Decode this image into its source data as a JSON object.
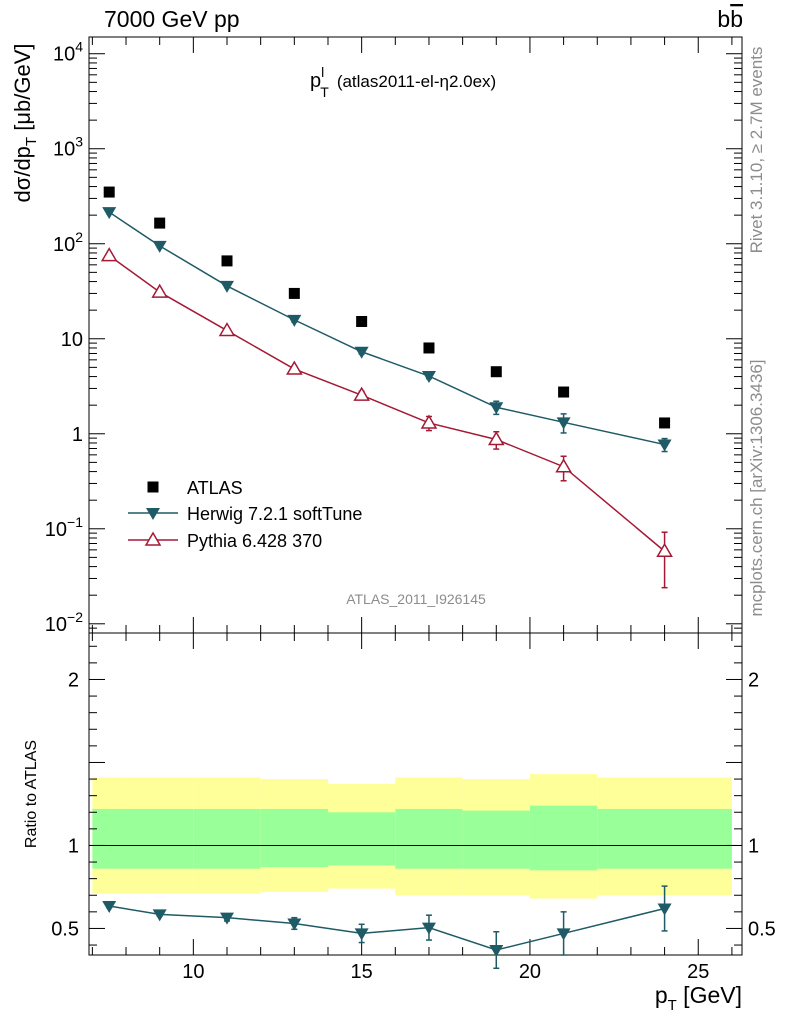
{
  "header": {
    "left": "7000 GeV pp",
    "right_main": "b",
    "right_bar": "b"
  },
  "side_text": {
    "rivet": "Rivet 3.1.10, ≥ 2.7M events",
    "mcplots": "mcplots.cern.ch [arXiv:1306.3436]"
  },
  "plot_title": {
    "main": "p",
    "sup": "l",
    "sub": "T",
    "rest": "(atlas2011-el-η2.0ex)"
  },
  "watermark": "ATLAS_2011_I926145",
  "chart_data": [
    {
      "type": "scatter",
      "panel": "main",
      "ylabel": "dσ/dp_T [μb/GeV]",
      "yscale": "log",
      "ylim": [
        0.008,
        15000
      ],
      "xlim": [
        6.9,
        26.3
      ],
      "y_tick_labels": [
        "10^-2",
        "10^-1",
        "1",
        "10",
        "10^2",
        "10^3",
        "10^4"
      ],
      "legend_position": "lower-left",
      "series": [
        {
          "name": "ATLAS",
          "marker": "filled-square",
          "color": "#000000",
          "x": [
            7.5,
            9,
            11,
            13,
            15,
            17,
            19,
            21,
            24
          ],
          "y": [
            350,
            165,
            66,
            30,
            15.2,
            8.0,
            4.5,
            2.75,
            1.3
          ]
        },
        {
          "name": "Herwig 7.2.1 softTune",
          "marker": "filled-triangle-down",
          "color": "#1f5b66",
          "x": [
            7.5,
            9,
            11,
            13,
            15,
            17,
            19,
            21,
            24
          ],
          "y": [
            215,
            95,
            36,
            15.8,
            7.3,
            4.05,
            1.9,
            1.32,
            0.77
          ],
          "y_err": [
            8,
            4,
            1.5,
            0.8,
            0.4,
            0.25,
            0.3,
            0.3,
            0.12
          ]
        },
        {
          "name": "Pythia 6.428 370",
          "marker": "open-triangle-up",
          "color": "#a31a35",
          "x": [
            7.5,
            9,
            11,
            13,
            15,
            17,
            19,
            21,
            24
          ],
          "y": [
            75,
            31,
            12.2,
            4.8,
            2.55,
            1.3,
            0.87,
            0.45,
            0.058
          ],
          "y_err": [
            4,
            2,
            0.8,
            0.35,
            0.25,
            0.22,
            0.18,
            0.13,
            0.034
          ]
        }
      ]
    },
    {
      "type": "scatter",
      "panel": "ratio",
      "ylabel": "Ratio to ATLAS",
      "xlabel_main": "p",
      "xlabel_sub": "T",
      "xlabel_rest": " [GeV]",
      "ylim": [
        0.34,
        2.28
      ],
      "xlim": [
        6.9,
        26.3
      ],
      "x_tick_labels": [
        "10",
        "15",
        "20",
        "25"
      ],
      "y_tick_labels": [
        "0.5",
        "1",
        "2"
      ],
      "bands": {
        "bins": [
          [
            7,
            8
          ],
          [
            8,
            10
          ],
          [
            10,
            12
          ],
          [
            12,
            14
          ],
          [
            14,
            16
          ],
          [
            16,
            18
          ],
          [
            18,
            20
          ],
          [
            20,
            22
          ],
          [
            22,
            26
          ]
        ],
        "yellow": [
          [
            0.71,
            1.41
          ],
          [
            0.71,
            1.41
          ],
          [
            0.71,
            1.41
          ],
          [
            0.72,
            1.4
          ],
          [
            0.74,
            1.37
          ],
          [
            0.7,
            1.41
          ],
          [
            0.7,
            1.4
          ],
          [
            0.68,
            1.43
          ],
          [
            0.7,
            1.41
          ]
        ],
        "green": [
          [
            0.86,
            1.22
          ],
          [
            0.86,
            1.22
          ],
          [
            0.86,
            1.22
          ],
          [
            0.87,
            1.22
          ],
          [
            0.88,
            1.2
          ],
          [
            0.86,
            1.22
          ],
          [
            0.86,
            1.21
          ],
          [
            0.85,
            1.24
          ],
          [
            0.86,
            1.22
          ]
        ],
        "yellow_color": "#ffff99",
        "green_color": "#99ff99"
      },
      "series": [
        {
          "name": "Herwig 7.2.1 softTune",
          "marker": "filled-triangle-down",
          "color": "#1f5b66",
          "x": [
            7.5,
            9,
            11,
            13,
            15,
            17,
            19,
            21,
            24
          ],
          "y": [
            0.635,
            0.585,
            0.565,
            0.53,
            0.47,
            0.505,
            0.37,
            0.47,
            0.62
          ],
          "y_err": [
            0.01,
            0.01,
            0.02,
            0.035,
            0.055,
            0.075,
            0.11,
            0.13,
            0.135
          ]
        }
      ]
    }
  ]
}
